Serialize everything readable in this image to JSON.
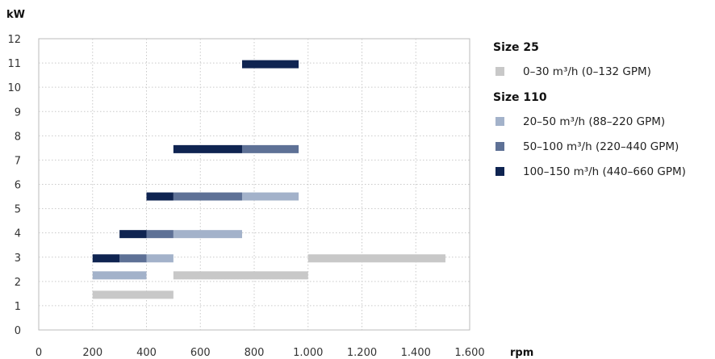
{
  "chart_data": {
    "type": "bar",
    "orientation": "horizontal-range",
    "xlabel": "rpm",
    "ylabel": "kW",
    "xlim": [
      0,
      1600
    ],
    "ylim": [
      0,
      12
    ],
    "x_ticks": [
      "0",
      "200",
      "400",
      "600",
      "800",
      "1.000",
      "1.200",
      "1.400",
      "1.600"
    ],
    "y_ticks": [
      "0",
      "1",
      "2",
      "3",
      "4",
      "5",
      "6",
      "7",
      "8",
      "9",
      "10",
      "11",
      "12"
    ],
    "grid": true,
    "legend_position": "right",
    "legend_groups": [
      {
        "title": "Size 25",
        "entries": [
          {
            "key": "s25",
            "label": "0–30 m³/h (0–132 GPM)",
            "color": "#c8c8c8"
          }
        ]
      },
      {
        "title": "Size 110",
        "entries": [
          {
            "key": "s110a",
            "label": "20–50 m³/h (88–220 GPM)",
            "color": "#a3b2ca"
          },
          {
            "key": "s110b",
            "label": "50–100 m³/h (220–440 GPM)",
            "color": "#5e7196"
          },
          {
            "key": "s110c",
            "label": "100–150 m³/h (440–660 GPM)",
            "color": "#0f2451"
          }
        ]
      }
    ],
    "series": [
      {
        "key": "s25",
        "name": "0–30 m³/h (0–132 GPM)",
        "segments": [
          {
            "y": 1.45,
            "x_start": 200,
            "x_end": 500
          },
          {
            "y": 2.25,
            "x_start": 500,
            "x_end": 1000
          },
          {
            "y": 2.95,
            "x_start": 1000,
            "x_end": 1510
          }
        ]
      },
      {
        "key": "s110a",
        "name": "20–50 m³/h (88–220 GPM)",
        "segments": [
          {
            "y": 2.25,
            "x_start": 200,
            "x_end": 400
          },
          {
            "y": 2.95,
            "x_start": 400,
            "x_end": 500
          },
          {
            "y": 3.95,
            "x_start": 500,
            "x_end": 755
          },
          {
            "y": 5.5,
            "x_start": 755,
            "x_end": 965
          }
        ]
      },
      {
        "key": "s110b",
        "name": "50–100 m³/h (220–440 GPM)",
        "segments": [
          {
            "y": 2.95,
            "x_start": 300,
            "x_end": 400
          },
          {
            "y": 3.95,
            "x_start": 400,
            "x_end": 500
          },
          {
            "y": 5.5,
            "x_start": 500,
            "x_end": 755
          },
          {
            "y": 7.45,
            "x_start": 755,
            "x_end": 965
          }
        ]
      },
      {
        "key": "s110c",
        "name": "100–150 m³/h (440–660 GPM)",
        "segments": [
          {
            "y": 2.95,
            "x_start": 200,
            "x_end": 300
          },
          {
            "y": 3.95,
            "x_start": 300,
            "x_end": 400
          },
          {
            "y": 5.5,
            "x_start": 400,
            "x_end": 500
          },
          {
            "y": 7.45,
            "x_start": 500,
            "x_end": 755
          },
          {
            "y": 10.95,
            "x_start": 755,
            "x_end": 965
          }
        ]
      }
    ]
  }
}
